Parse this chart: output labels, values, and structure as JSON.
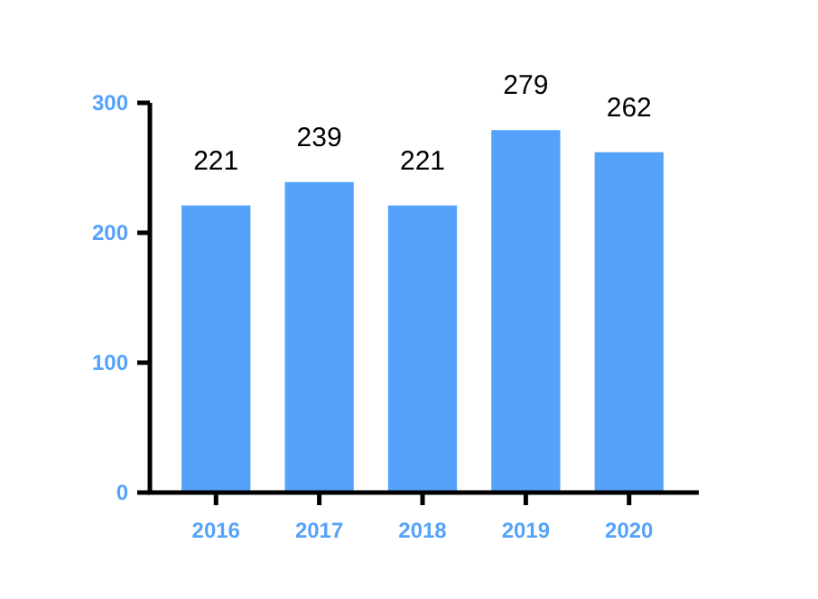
{
  "chart_data": {
    "type": "bar",
    "categories": [
      "2016",
      "2017",
      "2018",
      "2019",
      "2020"
    ],
    "values": [
      221,
      239,
      221,
      279,
      262
    ],
    "color": "#55a2fa",
    "ylim": [
      0,
      300
    ],
    "yticks": [
      0,
      100,
      200,
      300
    ],
    "data_labels": true,
    "grid": false
  }
}
